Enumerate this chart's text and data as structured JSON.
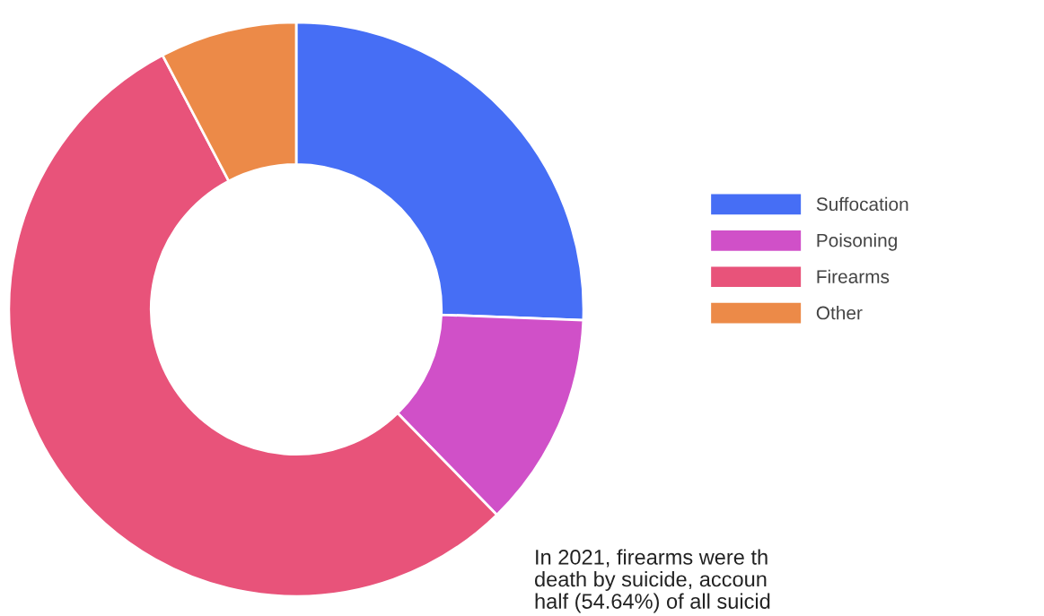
{
  "chart_data": {
    "type": "donut",
    "categories": [
      "Suffocation",
      "Poisoning",
      "Firearms",
      "Other"
    ],
    "values": [
      25.6,
      12.1,
      54.6,
      7.7
    ],
    "colors": [
      "#466ef5",
      "#d050c8",
      "#e8537a",
      "#ec8a48"
    ],
    "legend": "right",
    "annotations": [
      "In 2021, firearms were th\ndeath by suicide, accoun\nhalf (54.64%) of all suicid"
    ]
  }
}
